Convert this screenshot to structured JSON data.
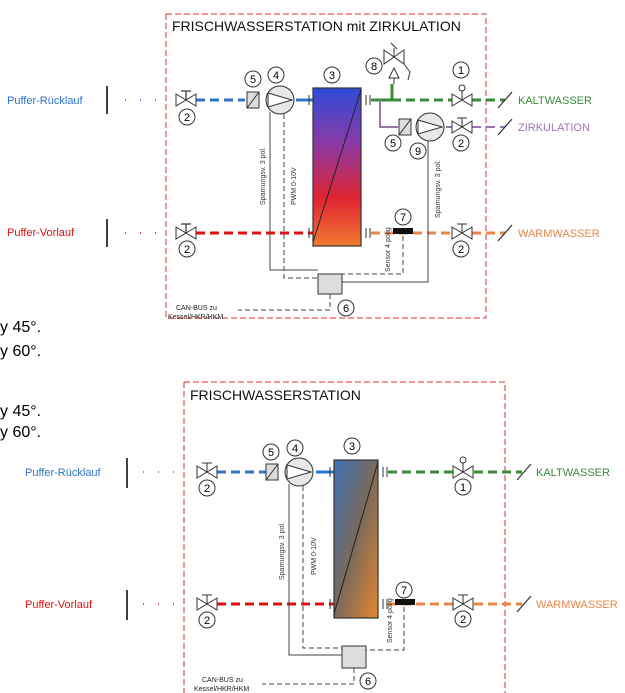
{
  "stray_text": [
    "y 45°.",
    "y 60°.",
    "y 45°.",
    "y 60°."
  ],
  "diagrams": [
    {
      "title": "FRISCHWASSERSTATION mit ZIRKULATION",
      "left_labels": {
        "return": "Puffer-Rücklauf",
        "flow": "Puffer-Vorlauf"
      },
      "right_labels": {
        "cold": "KALTWASSER",
        "circulation": "ZIRKULATION",
        "warm": "WARMWASSER"
      },
      "vertical_labels": {
        "pump_supply": "Sparnungsv. 3 pol.",
        "pump_control": "PWM 0-10V",
        "sensor": "Sensor 4 polig",
        "circ_supply": "Sparnungsv. 3 pol."
      },
      "can_bus": [
        "CAN-BUS zu",
        "Kessel/HKR/HKM"
      ],
      "numbers": {
        "n1": "1",
        "n2": "2",
        "n3": "3",
        "n4": "4",
        "n5": "5",
        "n6": "6",
        "n7": "7",
        "n8": "8",
        "n9": "9"
      }
    },
    {
      "title": "FRISCHWASSERSTATION",
      "left_labels": {
        "return": "Puffer-Rücklauf",
        "flow": "Puffer-Vorlauf"
      },
      "right_labels": {
        "cold": "KALTWASSER",
        "warm": "WARMWASSER"
      },
      "vertical_labels": {
        "pump_supply": "Sparnungsv. 3 pol.",
        "pump_control": "PWM 0-10V",
        "sensor": "Sensor 4 polig"
      },
      "can_bus": [
        "CAN-BUS zu",
        "Kessel/HKR/HKM"
      ],
      "numbers": {
        "n1": "1",
        "n2": "2",
        "n3": "3",
        "n4": "4",
        "n5": "5",
        "n6": "6",
        "n7": "7"
      }
    }
  ],
  "colors": {
    "blue": "#2f73c5",
    "red": "#e01010",
    "green": "#3a8a3a",
    "purple": "#9b73b3",
    "orange": "#e8864a"
  }
}
